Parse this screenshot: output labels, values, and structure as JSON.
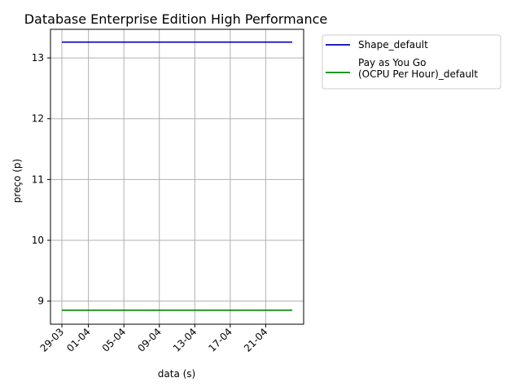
{
  "chart_data": {
    "type": "line",
    "title": "Database Enterprise Edition High Performance",
    "xlabel": "data (s)",
    "ylabel": "preço (p)",
    "x": [
      "29-03",
      "30-03",
      "31-03",
      "01-04",
      "02-04",
      "03-04",
      "04-04",
      "05-04",
      "06-04",
      "07-04",
      "08-04",
      "09-04",
      "10-04",
      "11-04",
      "12-04",
      "13-04",
      "14-04",
      "15-04",
      "16-04",
      "17-04",
      "18-04",
      "19-04",
      "20-04",
      "21-04",
      "22-04",
      "23-04",
      "24-04"
    ],
    "x_tick_labels": [
      "29-03",
      "01-04",
      "05-04",
      "09-04",
      "13-04",
      "17-04",
      "21-04"
    ],
    "ylim": [
      8.62,
      13.47
    ],
    "y_ticks": [
      9,
      10,
      11,
      12,
      13
    ],
    "grid": true,
    "legend_placement": "outside-top-right",
    "series": [
      {
        "name": "Shape_default",
        "color": "#0000bb",
        "values": [
          13.26,
          13.26,
          13.26,
          13.26,
          13.26,
          13.26,
          13.26,
          13.26,
          13.26,
          13.26,
          13.26,
          13.26,
          13.26,
          13.26,
          13.26,
          13.26,
          13.26,
          13.26,
          13.26,
          13.26,
          13.26,
          13.26,
          13.26,
          13.26,
          13.26,
          13.26,
          13.26
        ]
      },
      {
        "name": "Pay as You Go\n(OCPU Per Hour)_default",
        "color": "#008800",
        "values": [
          8.85,
          8.85,
          8.85,
          8.85,
          8.85,
          8.85,
          8.85,
          8.85,
          8.85,
          8.85,
          8.85,
          8.85,
          8.85,
          8.85,
          8.85,
          8.85,
          8.85,
          8.85,
          8.85,
          8.85,
          8.85,
          8.85,
          8.85,
          8.85,
          8.85,
          8.85,
          8.85
        ]
      }
    ]
  }
}
